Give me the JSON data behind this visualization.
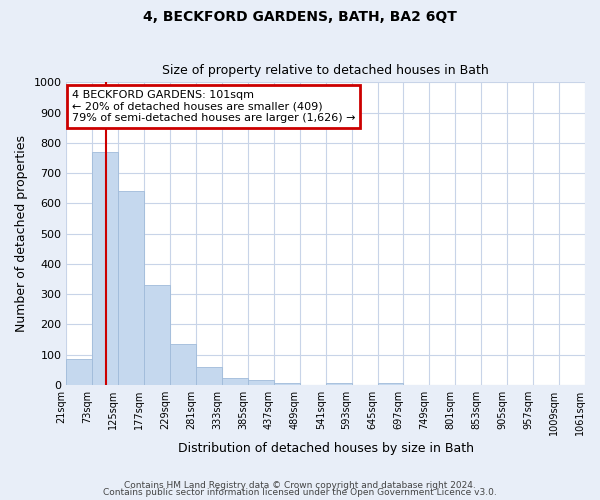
{
  "title": "4, BECKFORD GARDENS, BATH, BA2 6QT",
  "subtitle": "Size of property relative to detached houses in Bath",
  "xlabel": "Distribution of detached houses by size in Bath",
  "ylabel": "Number of detached properties",
  "bar_values": [
    85,
    770,
    640,
    330,
    135,
    60,
    22,
    15,
    8,
    0,
    8,
    0,
    8,
    0,
    0,
    0,
    0,
    0,
    0,
    0
  ],
  "bar_labels": [
    "21sqm",
    "73sqm",
    "125sqm",
    "177sqm",
    "229sqm",
    "281sqm",
    "333sqm",
    "385sqm",
    "437sqm",
    "489sqm",
    "541sqm",
    "593sqm",
    "645sqm",
    "697sqm",
    "749sqm",
    "801sqm",
    "853sqm",
    "905sqm",
    "957sqm",
    "1009sqm",
    "1061sqm"
  ],
  "bar_color": "#c5d8ee",
  "bar_edge_color": "#a0bbda",
  "vline_color": "#cc0000",
  "vline_position": 1.54,
  "ylim": [
    0,
    1000
  ],
  "yticks": [
    0,
    100,
    200,
    300,
    400,
    500,
    600,
    700,
    800,
    900,
    1000
  ],
  "annotation_title": "4 BECKFORD GARDENS: 101sqm",
  "annotation_line1": "← 20% of detached houses are smaller (409)",
  "annotation_line2": "79% of semi-detached houses are larger (1,626) →",
  "annotation_box_color": "#cc0000",
  "footer_line1": "Contains HM Land Registry data © Crown copyright and database right 2024.",
  "footer_line2": "Contains public sector information licensed under the Open Government Licence v3.0.",
  "background_color": "#e8eef8",
  "plot_bg_color": "#ffffff",
  "grid_color": "#c8d4e8"
}
